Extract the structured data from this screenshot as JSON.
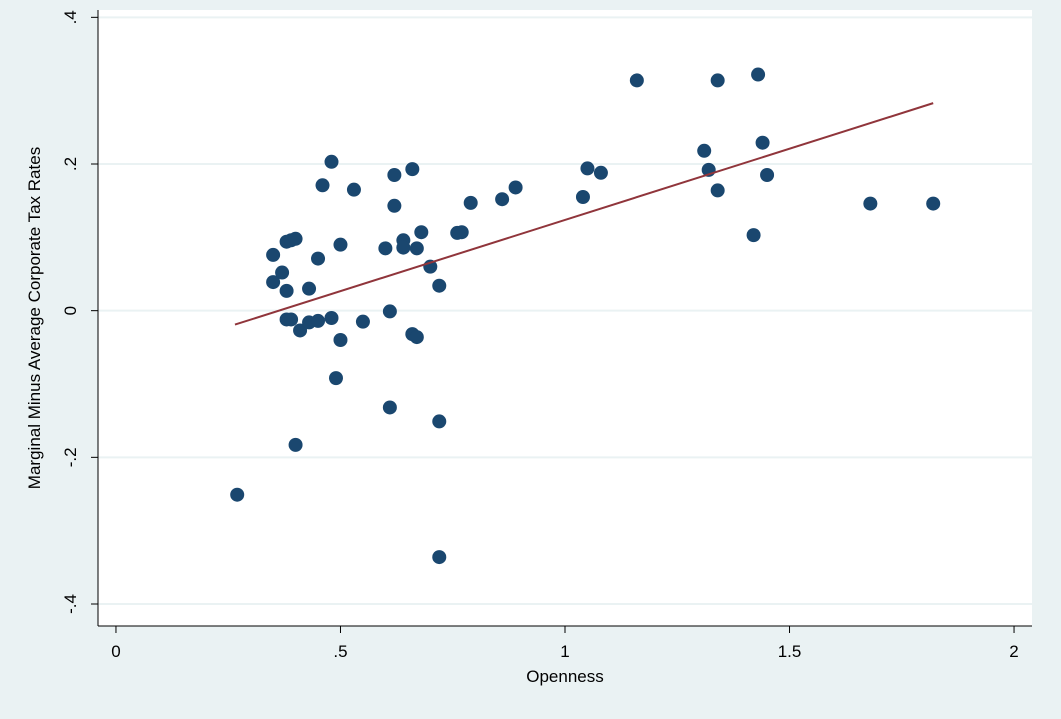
{
  "colors": {
    "background": "#eaf2f3",
    "plot_area": "#ffffff",
    "gridline": "#eaf2f3",
    "marker": "#1a476f",
    "fit_line": "#90353b"
  },
  "chart_data": {
    "type": "scatter",
    "xlabel": "Openness",
    "ylabel": "Marginal Minus Average Corporate Tax Rates",
    "xlim": [
      -0.04,
      2.04
    ],
    "ylim": [
      -0.43,
      0.41
    ],
    "x_ticks": [
      0,
      0.5,
      1,
      1.5,
      2
    ],
    "x_tick_labels": [
      "0",
      ".5",
      "1",
      "1.5",
      "2"
    ],
    "y_ticks": [
      -0.4,
      -0.2,
      0,
      0.2,
      0.4
    ],
    "y_tick_labels": [
      "-.4",
      "-.2",
      "0",
      ".2",
      ".4"
    ],
    "grid": true,
    "legend": "none",
    "series": [
      {
        "type": "scatter",
        "x": [
          0.27,
          0.35,
          0.35,
          0.37,
          0.38,
          0.38,
          0.38,
          0.39,
          0.39,
          0.4,
          0.4,
          0.41,
          0.43,
          0.43,
          0.45,
          0.45,
          0.46,
          0.48,
          0.48,
          0.49,
          0.5,
          0.5,
          0.53,
          0.55,
          0.6,
          0.61,
          0.61,
          0.62,
          0.62,
          0.64,
          0.64,
          0.66,
          0.66,
          0.67,
          0.67,
          0.68,
          0.7,
          0.72,
          0.72,
          0.72,
          0.76,
          0.77,
          0.79,
          0.86,
          0.89,
          1.04,
          1.05,
          1.08,
          1.16,
          1.31,
          1.32,
          1.34,
          1.34,
          1.42,
          1.43,
          1.44,
          1.45,
          1.68,
          1.82
        ],
        "y": [
          -0.251,
          0.039,
          0.076,
          0.052,
          0.027,
          -0.012,
          0.094,
          -0.012,
          0.096,
          -0.183,
          0.098,
          -0.027,
          0.03,
          -0.016,
          0.071,
          -0.014,
          0.171,
          0.203,
          -0.01,
          -0.092,
          -0.04,
          0.09,
          0.165,
          -0.015,
          0.085,
          -0.001,
          -0.132,
          0.185,
          0.143,
          0.096,
          0.086,
          0.193,
          -0.032,
          -0.036,
          0.085,
          0.107,
          0.06,
          0.034,
          -0.151,
          -0.336,
          0.106,
          0.107,
          0.147,
          0.152,
          0.168,
          0.155,
          0.194,
          0.188,
          0.314,
          0.218,
          0.192,
          0.164,
          0.314,
          0.103,
          0.322,
          0.229,
          0.185,
          0.146,
          0.146
        ]
      },
      {
        "type": "line",
        "x": [
          0.265,
          1.82
        ],
        "y": [
          -0.019,
          0.283
        ]
      }
    ]
  }
}
